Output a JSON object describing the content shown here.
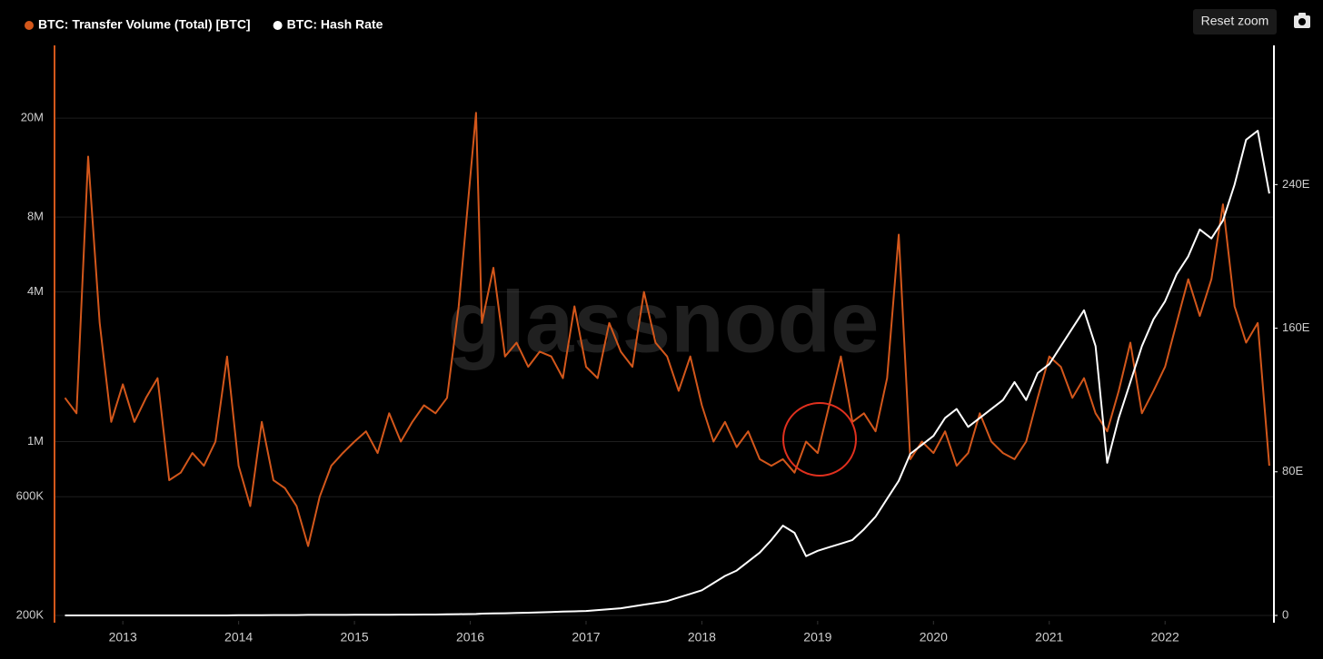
{
  "chart_data": {
    "type": "line",
    "watermark": "glassnode",
    "button": "Reset zoom",
    "yscale": "log",
    "grid": true,
    "legend": "top-left",
    "x": [
      2012.5,
      2012.6,
      2012.7,
      2012.8,
      2012.9,
      2013.0,
      2013.1,
      2013.2,
      2013.3,
      2013.4,
      2013.5,
      2013.6,
      2013.7,
      2013.8,
      2013.9,
      2014.0,
      2014.1,
      2014.2,
      2014.3,
      2014.4,
      2014.5,
      2014.6,
      2014.7,
      2014.8,
      2014.9,
      2015.0,
      2015.1,
      2015.2,
      2015.3,
      2015.4,
      2015.5,
      2015.6,
      2015.7,
      2015.8,
      2015.9,
      2016.05,
      2016.1,
      2016.2,
      2016.3,
      2016.4,
      2016.5,
      2016.6,
      2016.7,
      2016.8,
      2016.9,
      2017.0,
      2017.1,
      2017.2,
      2017.3,
      2017.4,
      2017.5,
      2017.6,
      2017.7,
      2017.8,
      2017.9,
      2018.0,
      2018.1,
      2018.2,
      2018.3,
      2018.4,
      2018.5,
      2018.6,
      2018.7,
      2018.8,
      2018.9,
      2019.0,
      2019.1,
      2019.2,
      2019.3,
      2019.4,
      2019.5,
      2019.6,
      2019.7,
      2019.8,
      2019.9,
      2020.0,
      2020.1,
      2020.2,
      2020.3,
      2020.4,
      2020.5,
      2020.6,
      2020.7,
      2020.8,
      2020.9,
      2021.0,
      2021.1,
      2021.2,
      2021.3,
      2021.4,
      2021.5,
      2021.6,
      2021.7,
      2021.8,
      2021.9,
      2022.0,
      2022.1,
      2022.2,
      2022.3,
      2022.4,
      2022.5,
      2022.6,
      2022.7,
      2022.8,
      2022.9
    ],
    "series": [
      {
        "name": "BTC: Transfer Volume (Total) [BTC]",
        "color": "#d3571b",
        "axis": "y",
        "values": [
          1500000,
          1300000,
          14000000,
          3000000,
          1200000,
          1700000,
          1200000,
          1500000,
          1800000,
          700000,
          750000,
          900000,
          800000,
          1000000,
          2200000,
          800000,
          550000,
          1200000,
          700000,
          650000,
          550000,
          380000,
          600000,
          800000,
          900000,
          1000000,
          1100000,
          900000,
          1300000,
          1000000,
          1200000,
          1400000,
          1300000,
          1500000,
          3500000,
          21000000,
          3000000,
          5000000,
          2200000,
          2500000,
          2000000,
          2300000,
          2200000,
          1800000,
          3500000,
          2000000,
          1800000,
          3000000,
          2300000,
          2000000,
          4000000,
          2500000,
          2200000,
          1600000,
          2200000,
          1400000,
          1000000,
          1200000,
          950000,
          1100000,
          850000,
          800000,
          850000,
          750000,
          1000000,
          900000,
          1400000,
          2200000,
          1200000,
          1300000,
          1100000,
          1800000,
          6800000,
          850000,
          1000000,
          900000,
          1100000,
          800000,
          900000,
          1300000,
          1000000,
          900000,
          850000,
          1000000,
          1500000,
          2200000,
          2000000,
          1500000,
          1800000,
          1300000,
          1100000,
          1600000,
          2500000,
          1300000,
          1600000,
          2000000,
          3000000,
          4500000,
          3200000,
          4500000,
          9000000,
          3500000,
          2500000,
          3000000,
          800000
        ]
      },
      {
        "name": "BTC: Hash Rate",
        "color": "#ffffff",
        "axis": "y2",
        "values": [
          0,
          0,
          0,
          0,
          0,
          0,
          0,
          0,
          0,
          0,
          0,
          0,
          0,
          0,
          0,
          0.1,
          0.1,
          0.1,
          0.2,
          0.2,
          0.2,
          0.3,
          0.3,
          0.3,
          0.3,
          0.35,
          0.35,
          0.4,
          0.4,
          0.45,
          0.45,
          0.5,
          0.5,
          0.6,
          0.7,
          0.8,
          1,
          1.1,
          1.2,
          1.4,
          1.5,
          1.7,
          1.9,
          2.1,
          2.3,
          2.5,
          3,
          3.5,
          4,
          5,
          6,
          7,
          8,
          10,
          12,
          14,
          18,
          22,
          25,
          30,
          35,
          42,
          50,
          46,
          33,
          36,
          38,
          40,
          42,
          48,
          55,
          65,
          75,
          90,
          95,
          100,
          110,
          115,
          105,
          110,
          115,
          120,
          130,
          120,
          135,
          140,
          150,
          160,
          170,
          150,
          85,
          110,
          130,
          150,
          165,
          175,
          190,
          200,
          215,
          210,
          220,
          240,
          265,
          270,
          235
        ]
      }
    ],
    "xlim": [
      2012.41,
      2022.94
    ],
    "xticks": [
      2013,
      2014,
      2015,
      2016,
      2017,
      2018,
      2019,
      2020,
      2021,
      2022
    ],
    "ylim": [
      200000,
      37600000
    ],
    "yticks": [
      {
        "value": 200000,
        "label": "200K"
      },
      {
        "value": 600000,
        "label": "600K"
      },
      {
        "value": 1000000,
        "label": "1M"
      },
      {
        "value": 4000000,
        "label": "4M"
      },
      {
        "value": 8000000,
        "label": "8M"
      },
      {
        "value": 20000000,
        "label": "20M"
      }
    ],
    "y2lim": [
      0,
      315
    ],
    "y2ticks": [
      0,
      {
        "value": 80,
        "label": "80E"
      },
      {
        "value": 160,
        "label": "160E"
      },
      {
        "value": 240,
        "label": "240E"
      }
    ]
  }
}
